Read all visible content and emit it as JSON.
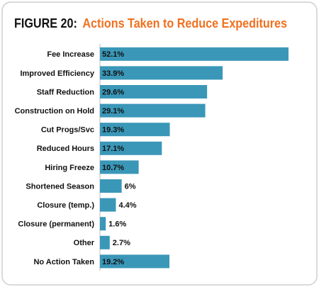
{
  "chart_data": {
    "type": "bar",
    "orientation": "horizontal",
    "figure_label": "FIGURE 20:",
    "title": "Actions Taken to Reduce Expeditures",
    "categories": [
      "Fee Increase",
      "Improved Efficiency",
      "Staff Reduction",
      "Construction on Hold",
      "Cut Progs/Svc",
      "Reduced Hours",
      "Hiring Freeze",
      "Shortened Season",
      "Closure (temp.)",
      "Closure (permanent)",
      "Other",
      "No Action Taken"
    ],
    "values": [
      52.1,
      33.9,
      29.6,
      29.1,
      19.3,
      17.1,
      10.7,
      6,
      4.4,
      1.6,
      2.7,
      19.2
    ],
    "value_labels": [
      "52.1%",
      "33.9%",
      "29.6%",
      "29.1%",
      "19.3%",
      "17.1%",
      "10.7%",
      "6%",
      "4.4%",
      "1.6%",
      "2.7%",
      "19.2%"
    ],
    "color": "#3a97b8"
  }
}
